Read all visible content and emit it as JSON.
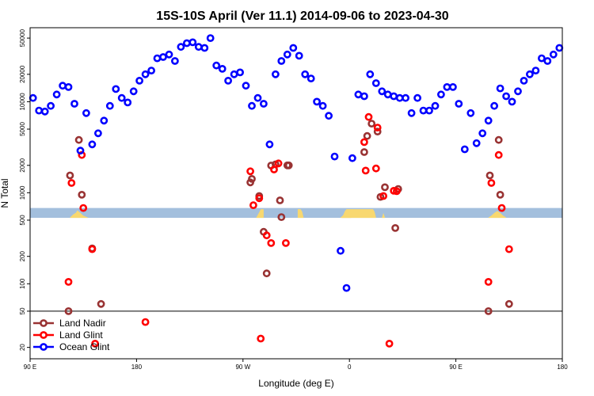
{
  "chart_data": {
    "type": "scatter",
    "title": "15S-10S April (Ver 11.1)   2014-09-06 to 2023-04-30",
    "xlabel": "Longitude (deg E)",
    "ylabel": "N Total",
    "x_range": [
      90,
      450
    ],
    "y_range": [
      15,
      65000
    ],
    "y_scale": "log",
    "x_ticks": [
      {
        "value": 90,
        "label": "90 E"
      },
      {
        "value": 162,
        "label": "180"
      },
      {
        "value": 234,
        "label": "90 W"
      },
      {
        "value": 306,
        "label": "0"
      },
      {
        "value": 378,
        "label": "90 E"
      },
      {
        "value": 450,
        "label": "180"
      }
    ],
    "y_ticks": [
      {
        "value": 20,
        "label": "20"
      },
      {
        "value": 50,
        "label": "50"
      },
      {
        "value": 100,
        "label": "100"
      },
      {
        "value": 200,
        "label": "200"
      },
      {
        "value": 500,
        "label": "500"
      },
      {
        "value": 1000,
        "label": "1000"
      },
      {
        "value": 2000,
        "label": "2000"
      },
      {
        "value": 5000,
        "label": "5000"
      },
      {
        "value": 10000,
        "label": "10000"
      },
      {
        "value": 20000,
        "label": "20000"
      },
      {
        "value": 50000,
        "label": "50000"
      }
    ],
    "reference_line": 50,
    "land_band": {
      "y_low": 530,
      "y_high": 680,
      "ocean_color": "#a3bfdd",
      "land_color": "#f8d870"
    },
    "land_segments": [
      {
        "x": [
          117,
          119,
          121,
          122,
          124,
          126,
          129
        ],
        "top": [
          535,
          575,
          605,
          640,
          600,
          560,
          535
        ]
      },
      {
        "x": [
          243,
          245,
          246,
          248
        ],
        "top": [
          535,
          610,
          660,
          660
        ]
      },
      {
        "x": [
          271,
          273,
          274,
          275
        ],
        "top": [
          660,
          660,
          620,
          535
        ]
      },
      {
        "x": [
          301,
          302,
          303,
          302,
          301
        ],
        "top": [
          535,
          560,
          600,
          560,
          535
        ]
      },
      {
        "x": [
          300,
          302,
          304,
          306,
          307
        ],
        "top": [
          535,
          570,
          610,
          590,
          535
        ]
      },
      {
        "x": [
          301,
          303,
          304,
          322,
          323,
          324
        ],
        "top": [
          535,
          630,
          660,
          660,
          620,
          535
        ]
      },
      {
        "x": [
          328,
          329,
          330
        ],
        "top": [
          535,
          600,
          535
        ]
      },
      {
        "x": [
          400,
          402,
          404,
          406,
          408,
          410,
          412
        ],
        "top": [
          535,
          560,
          600,
          630,
          600,
          560,
          535
        ]
      }
    ],
    "legend_position": "bottom-left",
    "series": [
      {
        "name": "Land Nadir",
        "color": "#993333",
        "x": [
          116,
          117,
          123,
          125,
          132,
          138,
          239,
          240,
          245,
          248,
          250,
          253,
          256,
          259,
          260,
          264,
          265,
          316,
          318,
          321,
          325,
          327,
          330,
          337,
          339,
          400,
          401,
          407,
          408,
          414
        ],
        "y": [
          50,
          1550,
          3800,
          950,
          245,
          60,
          1300,
          1420,
          920,
          372,
          130,
          1990,
          2050,
          825,
          540,
          2000,
          2000,
          2800,
          4200,
          5750,
          4700,
          900,
          1150,
          410,
          1100,
          50,
          1550,
          3800,
          950,
          60
        ]
      },
      {
        "name": "Land Glint",
        "color": "#ff0000",
        "x": [
          116,
          118,
          125,
          126,
          132,
          134,
          168,
          239,
          241,
          245,
          246,
          250,
          253,
          255,
          258,
          263,
          316,
          317,
          319,
          324,
          325,
          329,
          333,
          336,
          338,
          400,
          402,
          407,
          409,
          414
        ],
        "y": [
          105,
          1280,
          2600,
          680,
          240,
          22,
          38,
          1720,
          730,
          870,
          25,
          340,
          280,
          1800,
          2100,
          280,
          3600,
          1750,
          6800,
          1850,
          5200,
          920,
          22,
          1050,
          1040,
          105,
          1280,
          2600,
          680,
          240
        ]
      },
      {
        "name": "Ocean Glint",
        "color": "#0000ff",
        "x": [
          92,
          96,
          100,
          104,
          108,
          112,
          116,
          120,
          124,
          128,
          132,
          136,
          140,
          144,
          148,
          152,
          156,
          160,
          164,
          168,
          172,
          176,
          180,
          184,
          188,
          192,
          196,
          200,
          204,
          208,
          212,
          216,
          220,
          224,
          228,
          232,
          236,
          240,
          244,
          248,
          252,
          256,
          260,
          264,
          268,
          272,
          276,
          280,
          284,
          288,
          292,
          296,
          300,
          304,
          308,
          312,
          316,
          320,
          324,
          328,
          332,
          336,
          340,
          344,
          348,
          352,
          356,
          360,
          364,
          368,
          372,
          376,
          380,
          384,
          388,
          392,
          396,
          400,
          404,
          408,
          412,
          416,
          420,
          424,
          428,
          432,
          436,
          440,
          444,
          448
        ],
        "y": [
          11000,
          8000,
          7800,
          9000,
          12000,
          15000,
          14500,
          9500,
          2900,
          7500,
          3400,
          4500,
          6200,
          9000,
          13800,
          11000,
          9800,
          13000,
          17000,
          20000,
          22000,
          30000,
          31000,
          33000,
          28000,
          40000,
          44000,
          45000,
          40000,
          39000,
          50000,
          25000,
          23000,
          17000,
          20000,
          21000,
          15000,
          9000,
          11000,
          9500,
          3400,
          20000,
          28000,
          33000,
          39000,
          32000,
          20000,
          18000,
          10000,
          9000,
          7000,
          2500,
          230,
          90,
          2400,
          12000,
          11500,
          20000,
          16000,
          13000,
          12000,
          11500,
          11000,
          11000,
          7500,
          11000,
          8000,
          8000,
          9000,
          12000,
          14500,
          14500,
          9500,
          3000,
          7500,
          3500,
          4500,
          6200,
          9000,
          14000,
          11500,
          10000,
          13000,
          17000,
          20000,
          22000,
          30000,
          28000,
          33000,
          39000
        ]
      }
    ]
  }
}
